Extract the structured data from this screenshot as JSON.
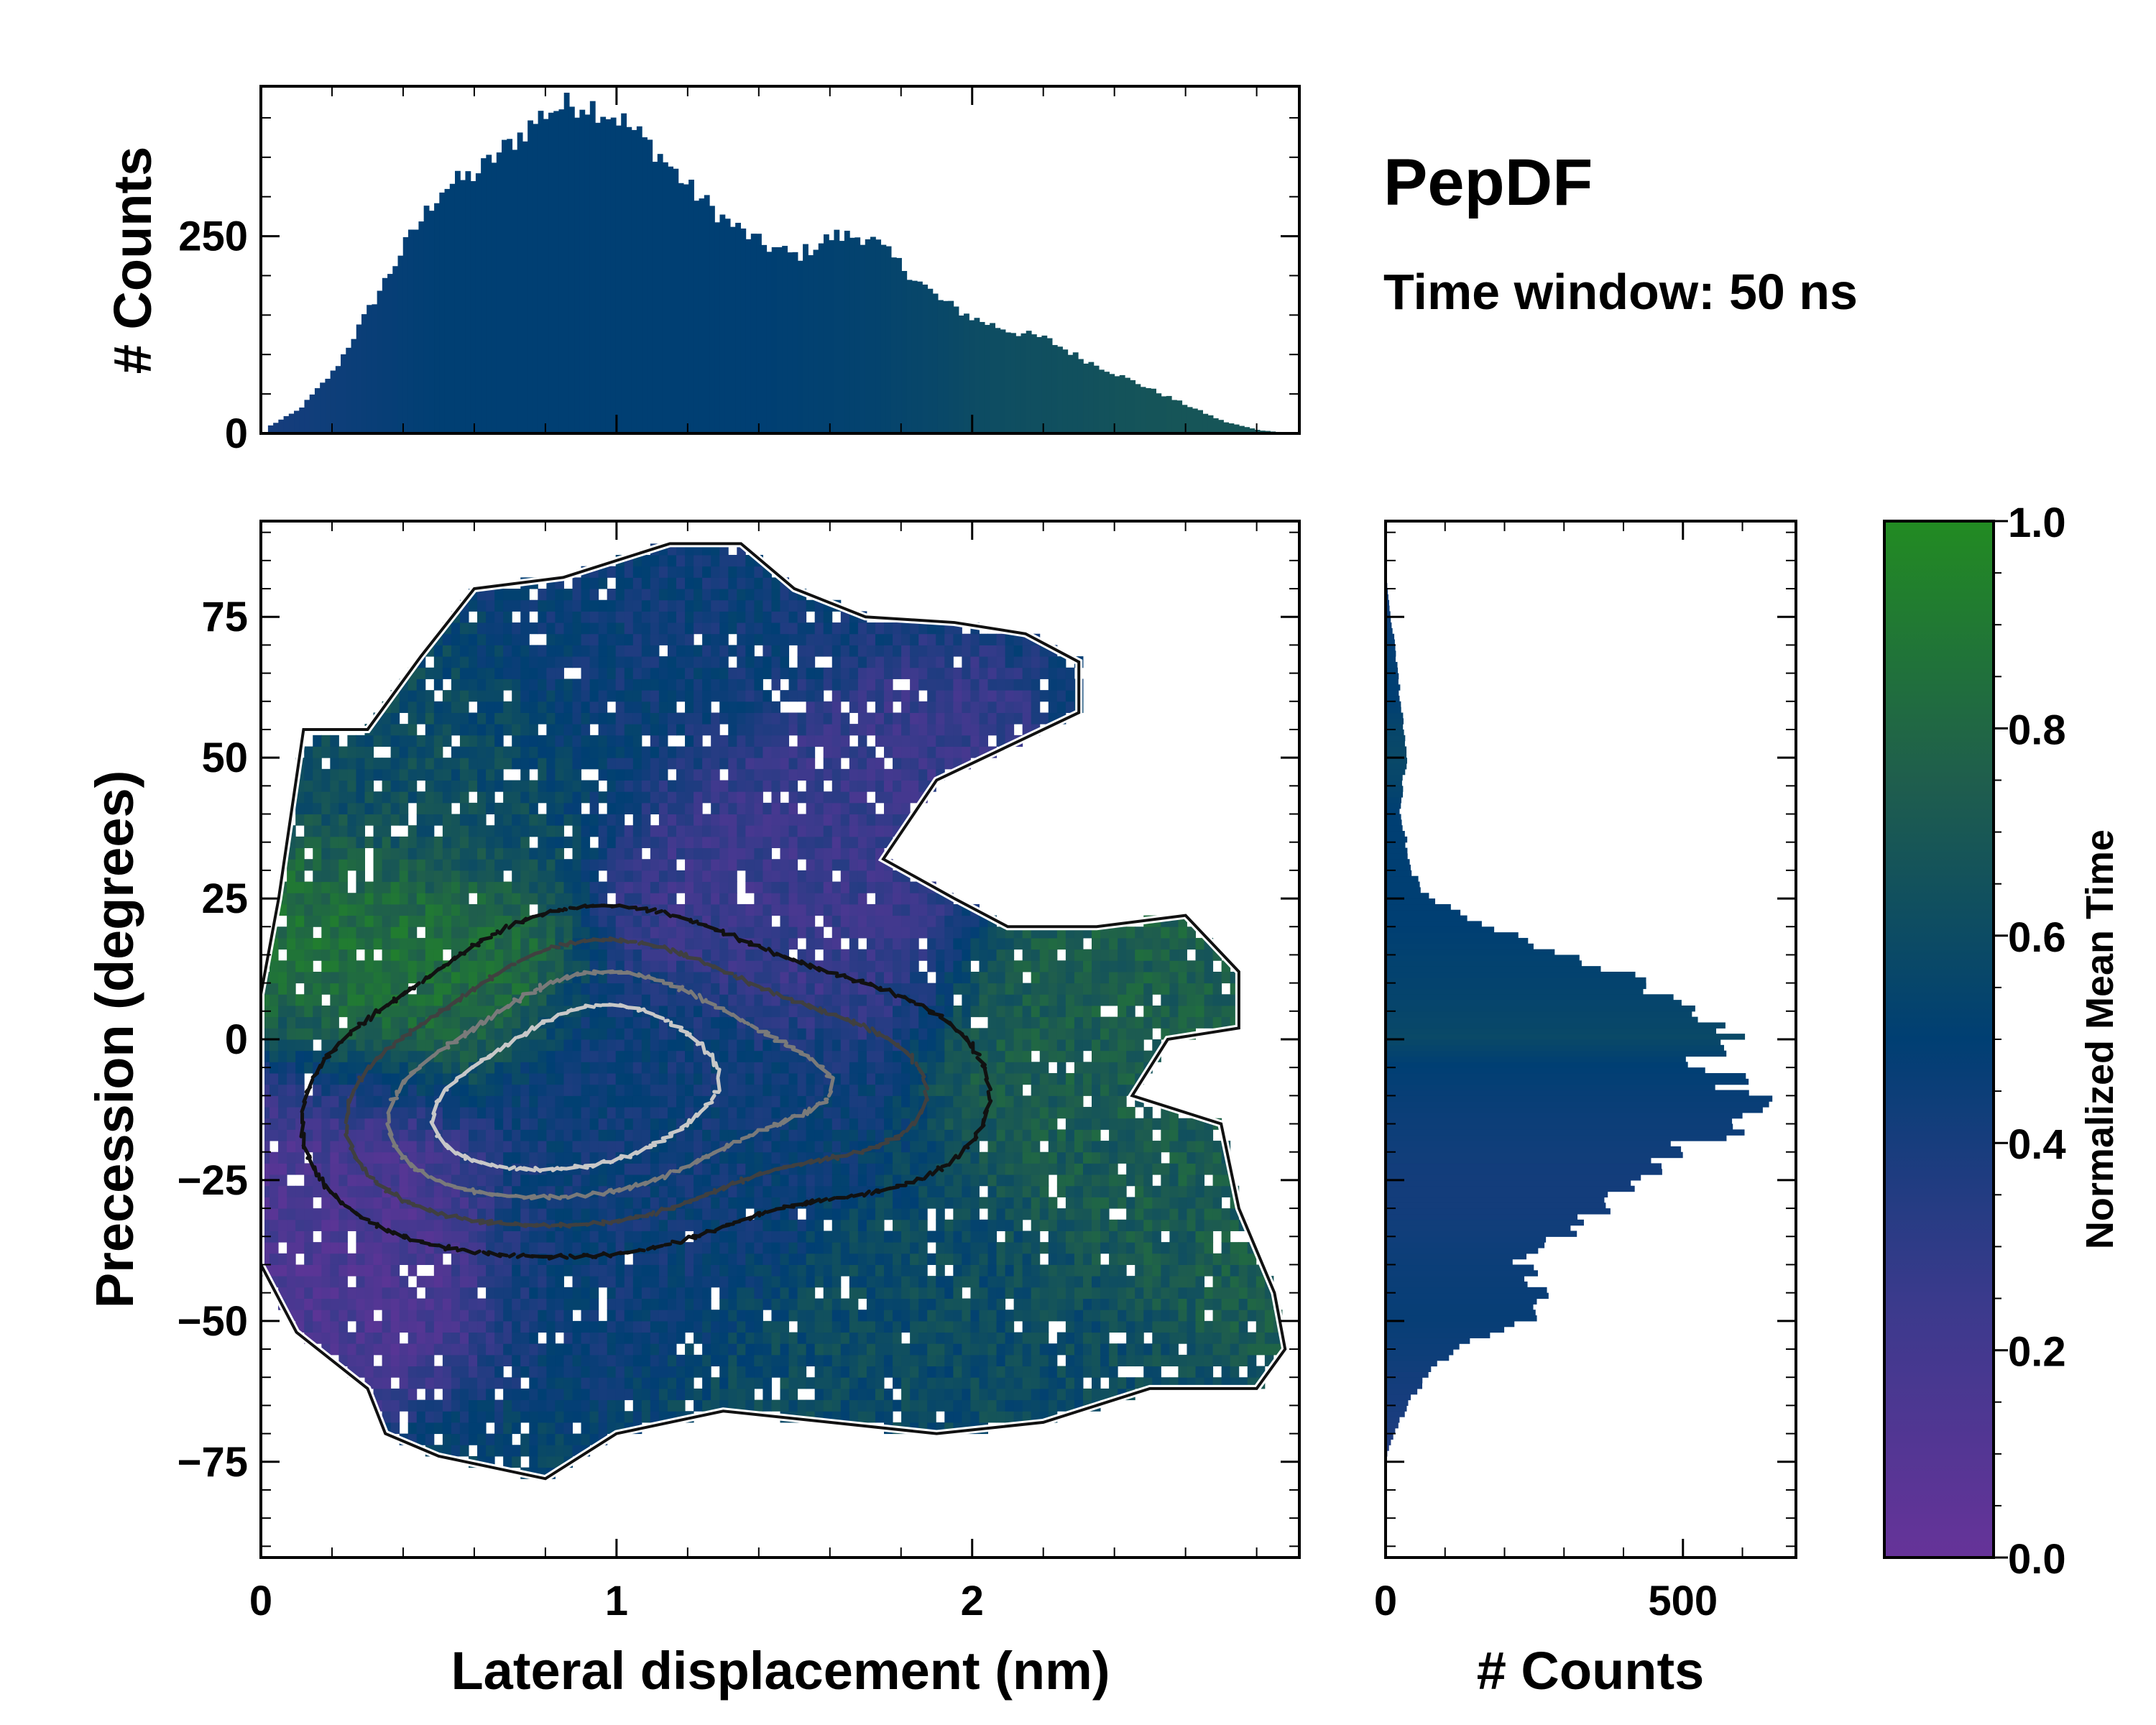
{
  "title": "PepDF",
  "subtitle": "Time window: 50 ns",
  "colors": {
    "cmap_low": "#663399",
    "cmap_mid": "#003f73",
    "cmap_high": "#228b22",
    "contour_dark": "#111111",
    "contour_mid": "#555555",
    "contour_light": "#bfbfbf"
  },
  "chart_data": [
    {
      "id": "top_histogram",
      "type": "bar",
      "title": "",
      "xlabel": "",
      "ylabel": "# Counts",
      "xlim": [
        0,
        2.92
      ],
      "ylim": [
        0,
        440
      ],
      "yticks": [
        0,
        250
      ],
      "ytick_labels": [
        "0",
        "250"
      ],
      "bin_width": 0.0146,
      "x_knots": [
        0,
        0.1,
        0.2,
        0.3,
        0.4,
        0.5,
        0.6,
        0.7,
        0.8,
        0.9,
        1.0,
        1.1,
        1.2,
        1.3,
        1.4,
        1.5,
        1.6,
        1.7,
        1.8,
        1.9,
        2.0,
        2.1,
        2.2,
        2.3,
        2.4,
        2.5,
        2.6,
        2.7,
        2.8,
        2.9
      ],
      "counts": [
        5,
        30,
        80,
        160,
        240,
        310,
        330,
        370,
        410,
        420,
        400,
        360,
        310,
        270,
        240,
        225,
        250,
        250,
        210,
        170,
        145,
        130,
        120,
        95,
        75,
        55,
        35,
        15,
        4,
        0
      ],
      "color_by_mean_time": [
        0.4,
        0.42,
        0.44,
        0.46,
        0.48,
        0.5,
        0.5,
        0.5,
        0.5,
        0.5,
        0.5,
        0.5,
        0.5,
        0.5,
        0.5,
        0.51,
        0.52,
        0.53,
        0.55,
        0.57,
        0.6,
        0.62,
        0.63,
        0.64,
        0.66,
        0.67,
        0.68,
        0.68,
        0.68,
        0.68
      ]
    },
    {
      "id": "main_2d_histogram",
      "type": "heatmap",
      "title": "",
      "xlabel": "Lateral displacement (nm)",
      "ylabel": "Precession (degrees)",
      "xlim": [
        0,
        2.92
      ],
      "ylim": [
        -92,
        92
      ],
      "xticks": [
        0,
        1,
        2
      ],
      "xtick_labels": [
        "0",
        "1",
        "2"
      ],
      "yticks": [
        -75,
        -50,
        -25,
        0,
        25,
        50,
        75
      ],
      "ytick_labels": [
        "−75",
        "−50",
        "−25",
        "0",
        "25",
        "50",
        "75"
      ],
      "color_meaning": "Normalized Mean Time",
      "region_outline_poly": [
        [
          0.0,
          8
        ],
        [
          0.05,
          25
        ],
        [
          0.12,
          55
        ],
        [
          0.3,
          55
        ],
        [
          0.45,
          68
        ],
        [
          0.6,
          80
        ],
        [
          0.85,
          82
        ],
        [
          1.15,
          88
        ],
        [
          1.35,
          88
        ],
        [
          1.5,
          80
        ],
        [
          1.7,
          75
        ],
        [
          1.95,
          74
        ],
        [
          2.15,
          72
        ],
        [
          2.3,
          67
        ],
        [
          2.3,
          58
        ],
        [
          2.1,
          52
        ],
        [
          1.9,
          46
        ],
        [
          1.75,
          32
        ],
        [
          1.95,
          25
        ],
        [
          2.1,
          20
        ],
        [
          2.35,
          20
        ],
        [
          2.6,
          22
        ],
        [
          2.75,
          12
        ],
        [
          2.75,
          2
        ],
        [
          2.55,
          0
        ],
        [
          2.45,
          -10
        ],
        [
          2.7,
          -15
        ],
        [
          2.75,
          -30
        ],
        [
          2.85,
          -45
        ],
        [
          2.88,
          -55
        ],
        [
          2.8,
          -62
        ],
        [
          2.5,
          -62
        ],
        [
          2.2,
          -68
        ],
        [
          1.9,
          -70
        ],
        [
          1.6,
          -68
        ],
        [
          1.3,
          -66
        ],
        [
          1.0,
          -70
        ],
        [
          0.8,
          -78
        ],
        [
          0.5,
          -74
        ],
        [
          0.35,
          -70
        ],
        [
          0.3,
          -62
        ],
        [
          0.1,
          -52
        ],
        [
          0.0,
          -40
        ]
      ],
      "density_peaks": [
        {
          "x": 0.55,
          "y": -15,
          "weight": 1.0
        },
        {
          "x": 0.95,
          "y": 4,
          "weight": 0.85
        },
        {
          "x": 1.0,
          "y": -18,
          "weight": 0.75
        },
        {
          "x": 1.72,
          "y": -10,
          "weight": 0.55
        },
        {
          "x": 1.35,
          "y": -5,
          "weight": 0.45
        }
      ],
      "mean_time_regions": [
        {
          "x": 0.4,
          "y": 52,
          "value": 0.62
        },
        {
          "x": 0.2,
          "y": 12,
          "value": 0.85
        },
        {
          "x": 2.45,
          "y": 12,
          "value": 0.75
        },
        {
          "x": 2.55,
          "y": -20,
          "value": 0.72
        },
        {
          "x": 1.6,
          "y": 30,
          "value": 0.25
        },
        {
          "x": 0.05,
          "y": -22,
          "value": 0.15
        },
        {
          "x": 1.9,
          "y": -50,
          "value": 0.6
        },
        {
          "x": 1.0,
          "y": 72,
          "value": 0.45
        },
        {
          "x": 1.2,
          "y": -20,
          "value": 0.45
        }
      ],
      "contour_levels": [
        0.18,
        0.35,
        0.55,
        0.75
      ],
      "contour_shades": [
        "#111111",
        "#404040",
        "#7a7a7a",
        "#c8c8c8"
      ]
    },
    {
      "id": "right_histogram",
      "type": "bar",
      "orientation": "horizontal",
      "title": "",
      "xlabel": "# Counts",
      "ylabel": "",
      "xlim": [
        0,
        690
      ],
      "ylim": [
        -92,
        92
      ],
      "xticks": [
        0,
        500
      ],
      "xtick_labels": [
        "0",
        "500"
      ],
      "y_knots": [
        -75,
        -70,
        -65,
        -60,
        -55,
        -50,
        -45,
        -40,
        -35,
        -30,
        -25,
        -20,
        -15,
        -10,
        -5,
        0,
        5,
        10,
        15,
        20,
        25,
        30,
        35,
        40,
        45,
        50,
        55,
        60,
        65,
        70,
        75,
        80,
        85
      ],
      "counts": [
        0,
        15,
        40,
        70,
        120,
        240,
        260,
        230,
        300,
        380,
        420,
        480,
        620,
        600,
        540,
        580,
        500,
        430,
        280,
        160,
        70,
        40,
        35,
        25,
        30,
        35,
        30,
        25,
        20,
        15,
        8,
        3,
        0
      ],
      "color_by_mean_time": [
        0.35,
        0.38,
        0.4,
        0.42,
        0.45,
        0.47,
        0.46,
        0.45,
        0.43,
        0.42,
        0.42,
        0.43,
        0.45,
        0.47,
        0.5,
        0.58,
        0.55,
        0.53,
        0.52,
        0.5,
        0.5,
        0.5,
        0.5,
        0.5,
        0.55,
        0.58,
        0.55,
        0.5,
        0.5,
        0.48,
        0.45,
        0.42,
        0.4
      ]
    },
    {
      "id": "colorbar",
      "type": "colorbar",
      "label": "Normalized Mean Time",
      "ticks": [
        0.0,
        0.2,
        0.4,
        0.6,
        0.8,
        1.0
      ],
      "tick_labels": [
        "0.0",
        "0.2",
        "0.4",
        "0.6",
        "0.8",
        "1.0"
      ]
    }
  ]
}
